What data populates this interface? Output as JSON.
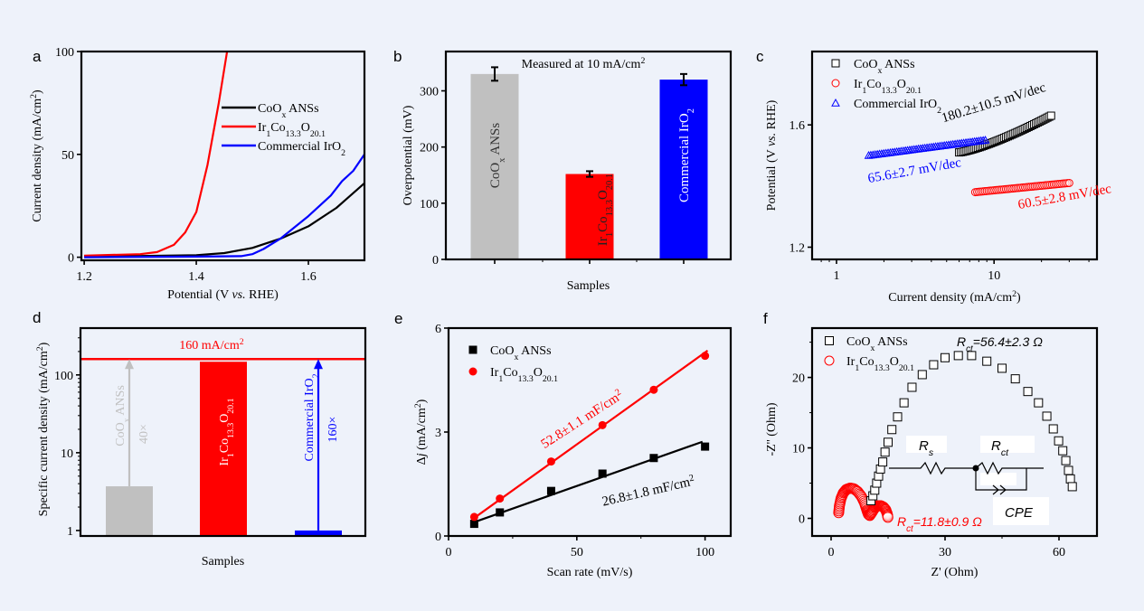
{
  "background": "#eef2fa",
  "colors": {
    "black": "#000000",
    "red": "#ff0000",
    "blue": "#0000ff",
    "gray": "#c0c0c0"
  },
  "chart_data": [
    {
      "panel": "a",
      "type": "line",
      "xlabel": "Potential (V vs. RHE)",
      "ylabel": "Current density (mA/cm2)",
      "xlim": [
        1.2,
        1.7
      ],
      "ylim": [
        0,
        100
      ],
      "xticks": [
        "1.2",
        "1.4",
        "1.6"
      ],
      "yticks": [
        "0",
        "50",
        "100"
      ],
      "legend_position": "center-right",
      "series": [
        {
          "name": "CoOx ANSs",
          "color": "#000000",
          "x": [
            1.2,
            1.3,
            1.4,
            1.45,
            1.5,
            1.55,
            1.6,
            1.65,
            1.7
          ],
          "y": [
            0.5,
            0.6,
            1,
            2,
            4.5,
            9,
            15,
            24,
            36
          ]
        },
        {
          "name": "Ir1Co13.3O20.1",
          "color": "#ff0000",
          "x": [
            1.2,
            1.3,
            1.33,
            1.36,
            1.38,
            1.4,
            1.42,
            1.44,
            1.455
          ],
          "y": [
            0.8,
            1.5,
            2.5,
            6,
            12,
            22,
            45,
            75,
            100
          ]
        },
        {
          "name": "Commercial IrO2",
          "color": "#0000ff",
          "x": [
            1.2,
            1.4,
            1.48,
            1.5,
            1.52,
            1.55,
            1.6,
            1.64,
            1.66,
            1.68,
            1.7
          ],
          "y": [
            0,
            0.3,
            0.5,
            1.5,
            4,
            9,
            20,
            30,
            37,
            42,
            50
          ]
        }
      ]
    },
    {
      "panel": "b",
      "type": "bar",
      "title": "Measured at 10 mA/cm2",
      "xlabel": "Samples",
      "ylabel": "Overpotential (mV)",
      "ylim": [
        0,
        370
      ],
      "yticks": [
        "0",
        "100",
        "200",
        "300"
      ],
      "categories": [
        "CoOx ANSs",
        "Ir1Co13.3O20.1",
        "Commercial IrO2"
      ],
      "values": [
        330,
        152,
        320
      ],
      "errors": [
        12,
        5,
        10
      ],
      "bar_colors": [
        "#c0c0c0",
        "#ff0000",
        "#0000ff"
      ],
      "bar_label_colors": [
        "#333333",
        "#222222",
        "#ffffff"
      ]
    },
    {
      "panel": "c",
      "type": "scatter",
      "xlabel": "Current density (mA/cm2)",
      "ylabel": "Potential (V vs. RHE)",
      "xscale": "log",
      "xlim": [
        0.7,
        45
      ],
      "ylim": [
        1.16,
        1.84
      ],
      "xticks": [
        "1",
        "10"
      ],
      "yticks": [
        "1.2",
        "1.6"
      ],
      "legend_position": "top-left",
      "series": [
        {
          "name": "CoOx ANSs",
          "marker": "square",
          "color": "#000000",
          "x_range": [
            6,
            23
          ],
          "y_range": [
            1.51,
            1.63
          ],
          "annotation": "180.2±10.5 mV/dec"
        },
        {
          "name": "Ir1Co13.3O20.1",
          "marker": "circle",
          "color": "#ff0000",
          "x_range": [
            7.6,
            30
          ],
          "y_range": [
            1.38,
            1.41
          ],
          "annotation": "60.5±2.8 mV/dec"
        },
        {
          "name": "Commercial IrO2",
          "marker": "triangle",
          "color": "#0000ff",
          "x_range": [
            1.6,
            8.8
          ],
          "y_range": [
            1.5,
            1.55
          ],
          "annotation": "65.6±2.7 mV/dec"
        }
      ]
    },
    {
      "panel": "d",
      "type": "bar",
      "xlabel": "Samples",
      "ylabel": "Specific current density (mA/cm2)",
      "yscale": "log",
      "ylim": [
        0.85,
        400
      ],
      "yticks": [
        "1",
        "10",
        "100"
      ],
      "categories": [
        "CoOx ANSs",
        "Ir1Co13.3O20.1",
        "Commercial IrO2"
      ],
      "values": [
        3.7,
        160,
        1.0
      ],
      "bar_colors": [
        "#c0c0c0",
        "#ff0000",
        "#0000ff"
      ],
      "reference_line": {
        "value": 160,
        "label": "160 mA/cm2",
        "color": "#ff0000"
      },
      "arrows": [
        {
          "category": "CoOx ANSs",
          "label": "CoOx ANSs",
          "factor": "40×",
          "color": "#c0c0c0"
        },
        {
          "category": "Commercial IrO2",
          "label": "Commercial IrO2",
          "factor": "160×",
          "color": "#0000ff"
        }
      ],
      "bar_text": "Ir1Co13.3O20.1"
    },
    {
      "panel": "e",
      "type": "scatter",
      "xlabel": "Scan rate (mV/s)",
      "ylabel": "Δj (mA/cm2)",
      "xlim": [
        0,
        110
      ],
      "ylim": [
        0,
        6
      ],
      "xticks": [
        "0",
        "50",
        "100"
      ],
      "yticks": [
        "0",
        "3",
        "6"
      ],
      "legend_position": "top-left",
      "series": [
        {
          "name": "CoOx ANSs",
          "marker": "filled-square",
          "color": "#000000",
          "x": [
            10,
            20,
            40,
            60,
            80,
            100
          ],
          "y": [
            0.35,
            0.68,
            1.3,
            1.8,
            2.25,
            2.58
          ],
          "fit": [
            [
              10,
              0.4
            ],
            [
              99,
              2.72
            ]
          ],
          "annotation": "26.8±1.8 mF/cm2"
        },
        {
          "name": "Ir1Co13.3O20.1",
          "marker": "filled-circle",
          "color": "#ff0000",
          "x": [
            10,
            20,
            40,
            60,
            80,
            100
          ],
          "y": [
            0.55,
            1.08,
            2.15,
            3.2,
            4.22,
            5.2
          ],
          "fit": [
            [
              10,
              0.52
            ],
            [
              101,
              5.35
            ]
          ],
          "annotation": "52.8±1.1 mF/cm2"
        }
      ]
    },
    {
      "panel": "f",
      "type": "scatter",
      "xlabel": "Z' (Ohm)",
      "ylabel": "-Z'' (Ohm)",
      "xlim": [
        -5,
        70
      ],
      "ylim": [
        -2.5,
        27
      ],
      "xticks": [
        "0",
        "30",
        "60"
      ],
      "yticks": [
        "0",
        "10",
        "20"
      ],
      "legend_position": "top-left",
      "series": [
        {
          "name": "CoOx ANSs",
          "marker": "square",
          "color": "#000000",
          "annotation": "Rct=56.4±2.3 Ω",
          "x": [
            10.5,
            11,
            11.5,
            12,
            12.5,
            13,
            13.6,
            14.2,
            15,
            16,
            17.5,
            19.2,
            21.3,
            24,
            27,
            30,
            33.5,
            37,
            41,
            45,
            48.5,
            51.8,
            54.6,
            56.8,
            58.5,
            59.9,
            61,
            61.8,
            62.5,
            63,
            63.5
          ],
          "y": [
            2.5,
            3.2,
            4,
            5,
            6,
            7,
            8,
            9.4,
            10.8,
            12.6,
            14.4,
            16.4,
            18.6,
            20.4,
            21.8,
            22.8,
            23.1,
            23.1,
            22.3,
            21.3,
            19.8,
            18,
            16.4,
            14.5,
            12.7,
            11,
            9.6,
            8.2,
            6.8,
            5.6,
            4.5
          ]
        },
        {
          "name": "Ir1Co13.3O20.1",
          "marker": "circle",
          "color": "#ff0000",
          "annotation": "Rct=11.8±0.9 Ω",
          "x": [
            2,
            2.2,
            2.6,
            3.2,
            4,
            5,
            6,
            7,
            8,
            8.8,
            9.4,
            9.8,
            10.2,
            10.8,
            11.5,
            12.3,
            13.1,
            13.8,
            14.4,
            14.8,
            15
          ],
          "y": [
            0.8,
            1.8,
            2.8,
            3.6,
            4.1,
            4.3,
            4.2,
            3.8,
            3.1,
            2.2,
            1.2,
            0.6,
            0.4,
            0.9,
            1.5,
            1.8,
            1.8,
            1.6,
            1.2,
            0.6,
            0
          ]
        }
      ],
      "circuit": {
        "labels": [
          "Rs",
          "Rct",
          "CPE"
        ]
      }
    }
  ],
  "panel_letters": [
    "a",
    "b",
    "c",
    "d",
    "e",
    "f"
  ]
}
